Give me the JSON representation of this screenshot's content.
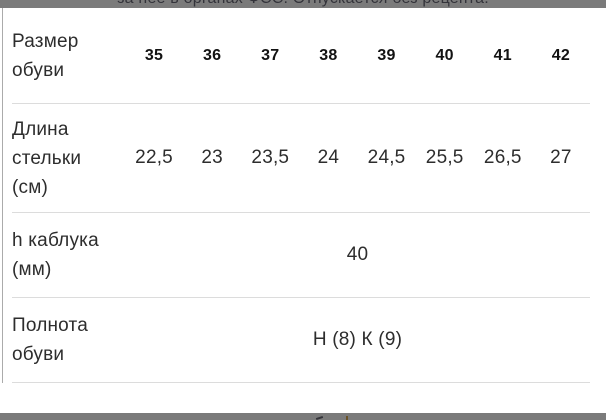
{
  "overlay": {
    "top_text": "за нее в органах ФСС. Отпускается без рецепта."
  },
  "table": {
    "rows": [
      {
        "label": "Размер обуви",
        "values": [
          "35",
          "36",
          "37",
          "38",
          "39",
          "40",
          "41",
          "42"
        ]
      },
      {
        "label": "Длина стельки (см)",
        "values": [
          "22,5",
          "23",
          "23,5",
          "24",
          "24,5",
          "25,5",
          "26,5",
          "27"
        ]
      },
      {
        "label": "h каблука (мм)",
        "value": "40"
      },
      {
        "label": "Полнота обуви",
        "value": "Н (8) К (9)"
      }
    ]
  },
  "colors": {
    "overlay_gray": "#7b7b7b",
    "divider": "#dcdcdc",
    "text": "#2d2d2d"
  }
}
